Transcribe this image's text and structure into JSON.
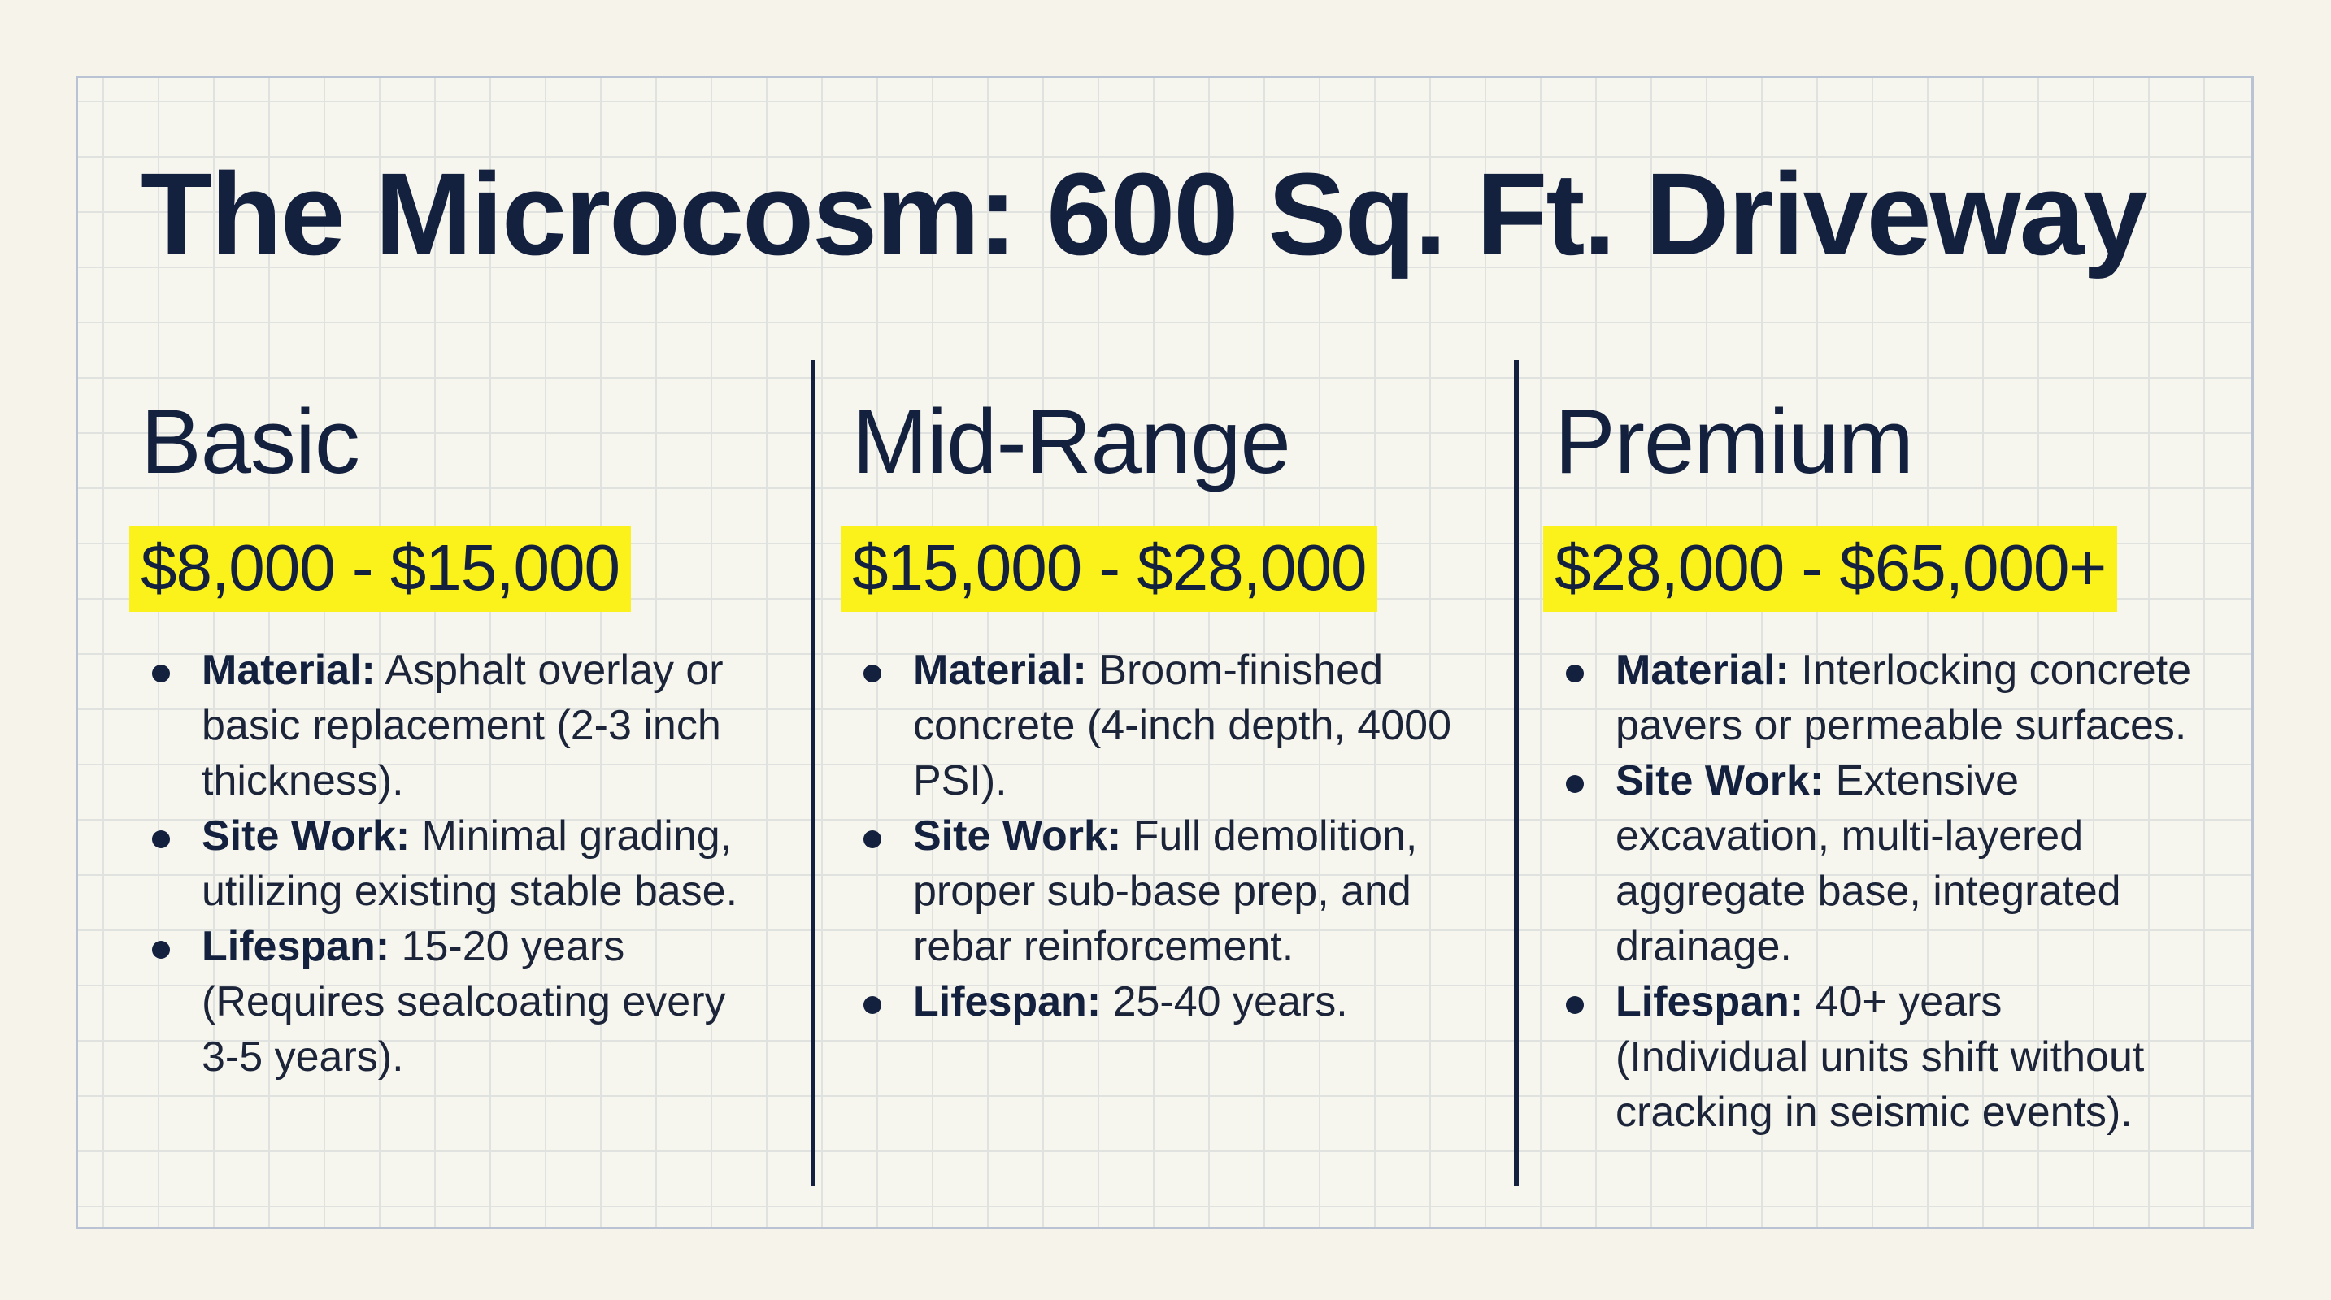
{
  "title": "The Microcosm: 600 Sq. Ft. Driveway",
  "highlight_color": "#fbf21b",
  "tiers": [
    {
      "name": "Basic",
      "price": "$8,000 - $15,000",
      "items": [
        {
          "label": "Material:",
          "text": " Asphalt overlay or basic replacement (2-3 inch thickness)."
        },
        {
          "label": "Site Work:",
          "text": " Minimal grading, utilizing existing stable base."
        },
        {
          "label": "Lifespan:",
          "text": " 15-20 years (Requires sealcoating every 3-5 years)."
        }
      ]
    },
    {
      "name": "Mid-Range",
      "price": "$15,000 - $28,000",
      "items": [
        {
          "label": "Material:",
          "text": " Broom-finished concrete (4-inch depth, 4000 PSI)."
        },
        {
          "label": "Site Work:",
          "text": " Full demolition, proper sub-base prep, and rebar reinforcement."
        },
        {
          "label": "Lifespan:",
          "text": " 25-40 years."
        }
      ]
    },
    {
      "name": "Premium",
      "price": "$28,000 - $65,000+",
      "items": [
        {
          "label": "Material:",
          "text": " Interlocking concrete pavers or permeable surfaces."
        },
        {
          "label": "Site Work:",
          "text": " Extensive excavation, multi-layered aggregate base, integrated drainage."
        },
        {
          "label": "Lifespan:",
          "text": " 40+ years (Individual units shift without cracking in seismic events)."
        }
      ]
    }
  ]
}
